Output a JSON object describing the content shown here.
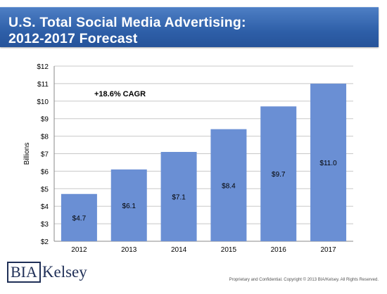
{
  "header": {
    "title_line1": "U.S. Total Social Media Advertising:",
    "title_line2": "2012-2017 Forecast",
    "colors": {
      "bar_start": "#4d7ec4",
      "bar_end": "#26539a",
      "text": "#ffffff"
    }
  },
  "chart_data": {
    "type": "bar",
    "categories": [
      "2012",
      "2013",
      "2014",
      "2015",
      "2016",
      "2017"
    ],
    "values": [
      4.7,
      6.1,
      7.1,
      8.4,
      9.7,
      11.0
    ],
    "data_labels": [
      "$4.7",
      "$6.1",
      "$7.1",
      "$8.4",
      "$9.7",
      "$11.0"
    ],
    "ylabel": "Billions",
    "ylim": [
      2,
      12
    ],
    "yticks": [
      2,
      3,
      4,
      5,
      6,
      7,
      8,
      9,
      10,
      11,
      12
    ],
    "ytick_labels": [
      "$2",
      "$3",
      "$4",
      "$5",
      "$6",
      "$7",
      "$8",
      "$9",
      "$10",
      "$11",
      "$12"
    ],
    "annotation": "+18.6% CAGR",
    "grid": true,
    "bar_color": "#6a8fd4"
  },
  "branding": {
    "logo_bia": "BIA",
    "logo_kelsey": "Kelsey",
    "color": "#1f2f57"
  },
  "footer": {
    "text": "Proprietary and Confidential. Copyright © 2013 BIA/Kelsey. All Rights Reserved."
  }
}
